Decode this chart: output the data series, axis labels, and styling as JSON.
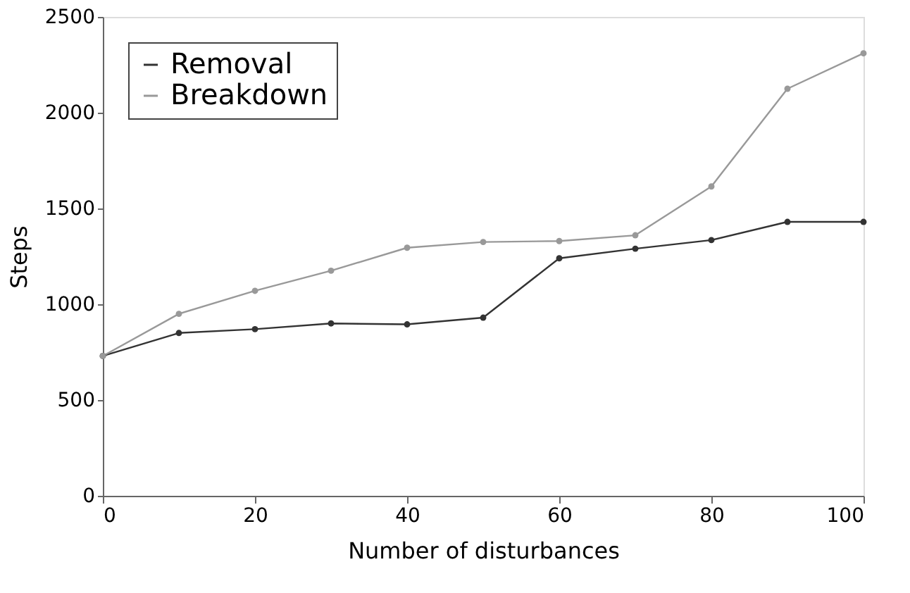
{
  "chart_data": {
    "type": "line",
    "xlabel": "Number of disturbances",
    "ylabel": "Steps",
    "x": [
      0,
      10,
      20,
      30,
      40,
      50,
      60,
      70,
      80,
      90,
      100
    ],
    "series": [
      {
        "name": "Removal",
        "color": "#333333",
        "values": [
          730,
          850,
          870,
          900,
          895,
          930,
          1240,
          1290,
          1335,
          1430,
          1430
        ]
      },
      {
        "name": "Breakdown",
        "color": "#999999",
        "values": [
          730,
          950,
          1070,
          1175,
          1295,
          1325,
          1330,
          1360,
          1615,
          2125,
          2310
        ]
      }
    ],
    "xlim": [
      0,
      100
    ],
    "xticks": [
      0,
      20,
      40,
      60,
      80,
      100
    ],
    "ylim": [
      0,
      2500
    ],
    "yticks": [
      0,
      500,
      1000,
      1500,
      2000,
      2500
    ],
    "grid": false,
    "legend": "top left",
    "marker": "circle",
    "line_style": "solid"
  }
}
